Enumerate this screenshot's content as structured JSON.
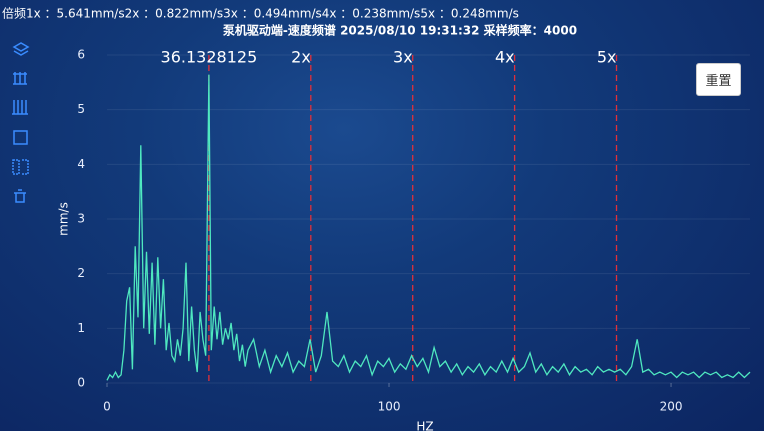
{
  "header": "倍频1x ：5.641mm/s2x ：0.822mm/s3x ：0.494mm/s4x ：0.238mm/s5x ：0.248mm/s",
  "reset_button": "重置",
  "chart_data": {
    "type": "line",
    "title": "泵机驱动端-速度频谱 2025/08/10 19:31:32 采样频率：4000",
    "xlabel": "HZ",
    "ylabel": "mm/s",
    "color": "#4fe8c0",
    "xlim": [
      0,
      228
    ],
    "xticks": [
      0,
      100,
      200
    ],
    "ylim": [
      0,
      6
    ],
    "yticks": [
      0,
      1,
      2,
      3,
      4,
      5,
      6
    ],
    "grid": true,
    "markers": [
      {
        "x": 36.1328125,
        "label": "36.1328125"
      },
      {
        "x": 72.265625,
        "label": "2x"
      },
      {
        "x": 108.3984375,
        "label": "3x"
      },
      {
        "x": 144.53125,
        "label": "4x"
      },
      {
        "x": 180.6640625,
        "label": "5x"
      }
    ],
    "x": [
      0,
      1,
      2,
      3,
      4,
      5,
      6,
      7,
      8,
      9,
      10,
      11,
      12,
      13,
      14,
      15,
      16,
      17,
      18,
      19,
      20,
      21,
      22,
      23,
      24,
      25,
      26,
      27,
      28,
      29,
      30,
      31,
      32,
      33,
      34,
      35,
      36.1328125,
      37,
      38,
      39,
      40,
      41,
      42,
      43,
      44,
      45,
      46,
      47,
      48,
      49,
      50,
      52,
      54,
      56,
      58,
      60,
      62,
      64,
      66,
      68,
      70,
      72,
      74,
      76,
      78,
      80,
      82,
      84,
      86,
      88,
      90,
      92,
      94,
      96,
      98,
      100,
      102,
      104,
      106,
      108,
      110,
      112,
      114,
      116,
      118,
      120,
      122,
      124,
      126,
      128,
      130,
      132,
      134,
      136,
      138,
      140,
      142,
      144,
      146,
      148,
      150,
      152,
      154,
      156,
      158,
      160,
      162,
      164,
      166,
      168,
      170,
      172,
      174,
      176,
      178,
      180,
      182,
      184,
      186,
      188,
      190,
      192,
      194,
      196,
      198,
      200,
      202,
      204,
      206,
      208,
      210,
      212,
      214,
      216,
      218,
      220,
      222,
      224,
      226,
      228
    ],
    "values": [
      0.05,
      0.15,
      0.1,
      0.2,
      0.1,
      0.15,
      0.6,
      1.5,
      1.75,
      0.25,
      2.5,
      1.2,
      4.35,
      1.0,
      2.4,
      0.9,
      2.2,
      0.7,
      2.3,
      1.0,
      1.9,
      0.6,
      1.1,
      0.5,
      0.4,
      0.8,
      0.5,
      1.0,
      2.2,
      0.4,
      1.4,
      0.6,
      0.2,
      1.3,
      0.8,
      0.5,
      5.641,
      0.6,
      1.4,
      0.8,
      1.3,
      0.7,
      1.0,
      0.8,
      1.1,
      0.6,
      0.9,
      0.4,
      0.7,
      0.3,
      0.6,
      0.8,
      0.3,
      0.6,
      0.2,
      0.5,
      0.3,
      0.55,
      0.2,
      0.4,
      0.3,
      0.8,
      0.2,
      0.5,
      1.3,
      0.4,
      0.3,
      0.5,
      0.2,
      0.4,
      0.3,
      0.5,
      0.15,
      0.4,
      0.3,
      0.45,
      0.2,
      0.35,
      0.25,
      0.5,
      0.3,
      0.45,
      0.2,
      0.65,
      0.3,
      0.4,
      0.2,
      0.35,
      0.15,
      0.3,
      0.2,
      0.35,
      0.15,
      0.3,
      0.2,
      0.4,
      0.2,
      0.45,
      0.2,
      0.3,
      0.55,
      0.2,
      0.35,
      0.15,
      0.3,
      0.2,
      0.35,
      0.15,
      0.3,
      0.2,
      0.25,
      0.15,
      0.3,
      0.2,
      0.25,
      0.2,
      0.25,
      0.15,
      0.3,
      0.8,
      0.2,
      0.25,
      0.15,
      0.2,
      0.15,
      0.2,
      0.1,
      0.2,
      0.15,
      0.2,
      0.1,
      0.2,
      0.15,
      0.2,
      0.1,
      0.15,
      0.1,
      0.2,
      0.1,
      0.2
    ]
  }
}
